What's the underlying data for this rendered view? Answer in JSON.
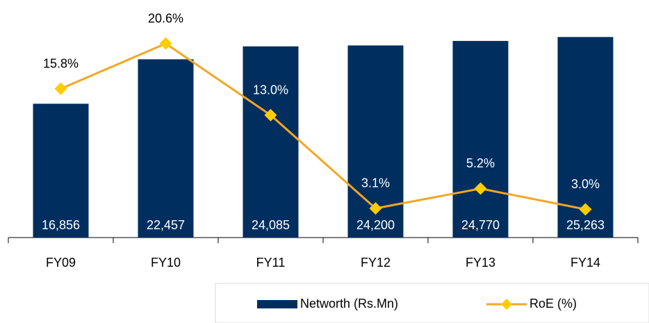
{
  "chart_data": {
    "type": "bar_line",
    "categories": [
      "FY09",
      "FY10",
      "FY11",
      "FY12",
      "FY13",
      "FY14"
    ],
    "series": [
      {
        "name": "Networth (Rs.Mn)",
        "type": "bar",
        "color": "#002f5f",
        "values": [
          16856,
          22457,
          24085,
          24200,
          24770,
          25263
        ],
        "value_labels": [
          "16,856",
          "22,457",
          "24,085",
          "24,200",
          "24,770",
          "25,263"
        ]
      },
      {
        "name": "RoE (%)",
        "type": "line",
        "axis": "y2",
        "color": "#f5a623",
        "marker_color": "#ffcc00",
        "values": [
          15.8,
          20.6,
          13.0,
          3.1,
          5.2,
          3.0
        ],
        "value_labels": [
          "15.8%",
          "20.6%",
          "13.0%",
          "3.1%",
          "5.2%",
          "3.0%"
        ]
      }
    ],
    "ylim": [
      0,
      28000
    ],
    "y2lim": [
      0,
      23.6
    ],
    "legend": "bottom-right"
  }
}
